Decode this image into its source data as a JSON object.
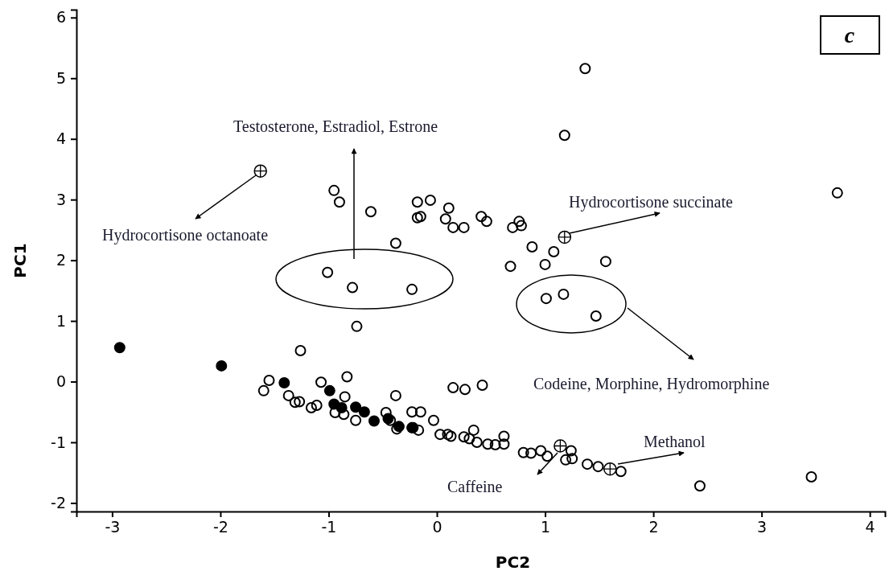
{
  "chart_data": {
    "type": "scatter",
    "xlabel": "PC2",
    "ylabel": "PC1",
    "xlim": [
      -3.33,
      4.14
    ],
    "ylim": [
      -2.14,
      6.13
    ],
    "xticks": [
      -3,
      -2,
      -1,
      0,
      1,
      2,
      3,
      4
    ],
    "yticks": [
      -2,
      -1,
      0,
      1,
      2,
      3,
      4,
      5,
      6
    ],
    "grid": false,
    "marker": "circle",
    "series": [
      {
        "color": "#000000",
        "x": [
          1.37,
          1.18,
          3.7,
          1.56,
          1.47,
          1.17,
          2.43,
          3.46,
          1.39,
          1.49,
          1.7,
          -0.95,
          -0.9,
          -0.61,
          -0.38,
          -0.18,
          -0.06,
          -0.18,
          -0.15,
          0.11,
          0.08,
          0.15,
          0.25,
          0.41,
          0.46,
          0.7,
          0.76,
          0.78,
          0.88,
          1.08,
          1.0,
          0.68,
          1.01,
          -1.01,
          -0.78,
          -0.23,
          -0.74,
          -1.26,
          -1.55,
          -1.6,
          -1.37,
          -1.31,
          -1.27,
          -1.16,
          -1.11,
          -1.07,
          -0.83,
          -0.85,
          -0.94,
          -0.86,
          -0.75,
          -0.47,
          -0.38,
          0.15,
          0.26,
          0.42,
          -0.23,
          -0.15,
          -0.03,
          -0.43,
          -0.37,
          -0.23,
          -0.17,
          0.03,
          0.13,
          0.25,
          0.34,
          0.37,
          0.47,
          0.54,
          0.62,
          0.62,
          0.8,
          0.87,
          0.96,
          1.02,
          1.24,
          1.19,
          1.25,
          0.1,
          0.3
        ],
        "values": [
          5.16,
          4.06,
          3.11,
          1.98,
          1.08,
          1.44,
          -1.72,
          -1.57,
          -1.36,
          -1.4,
          -1.48,
          3.15,
          2.96,
          2.8,
          2.28,
          2.96,
          2.99,
          2.7,
          2.72,
          2.86,
          2.68,
          2.54,
          2.54,
          2.72,
          2.64,
          2.54,
          2.64,
          2.57,
          2.22,
          2.14,
          1.93,
          1.9,
          1.37,
          1.8,
          1.55,
          1.52,
          0.91,
          0.51,
          0.02,
          -0.15,
          -0.23,
          -0.34,
          -0.33,
          -0.43,
          -0.39,
          -0.01,
          0.08,
          -0.25,
          -0.51,
          -0.54,
          -0.64,
          -0.51,
          -0.23,
          -0.1,
          -0.13,
          -0.06,
          -0.5,
          -0.5,
          -0.64,
          -0.64,
          -0.78,
          -0.76,
          -0.8,
          -0.87,
          -0.9,
          -0.91,
          -0.8,
          -1.0,
          -1.03,
          -1.04,
          -0.9,
          -1.03,
          -1.17,
          -1.18,
          -1.14,
          -1.23,
          -1.14,
          -1.29,
          -1.27,
          -0.87,
          -0.94
        ]
      },
      {
        "color": "#000000",
        "x": [
          -2.93,
          -1.99,
          -1.41,
          -0.99,
          -0.95,
          -0.88,
          -0.75,
          -0.67,
          -0.58,
          -0.45,
          -0.35,
          -0.22
        ],
        "values": [
          0.56,
          0.26,
          -0.02,
          -0.15,
          -0.37,
          -0.43,
          -0.42,
          -0.5,
          -0.65,
          -0.61,
          -0.74,
          -0.76
        ]
      },
      {
        "color": "#000000",
        "x": [
          -1.63,
          1.18,
          1.14,
          1.6
        ],
        "values": [
          3.47,
          2.38,
          -1.06,
          -1.44
        ]
      }
    ],
    "annotations": [
      "Testosterone, Estradiol, Estrone",
      "Hydrocortisone octanoate",
      "Hydrocortisone succinate",
      "Codeine, Morphine, Hydromorphine",
      "Methanol",
      "Caffeine",
      "c"
    ]
  }
}
